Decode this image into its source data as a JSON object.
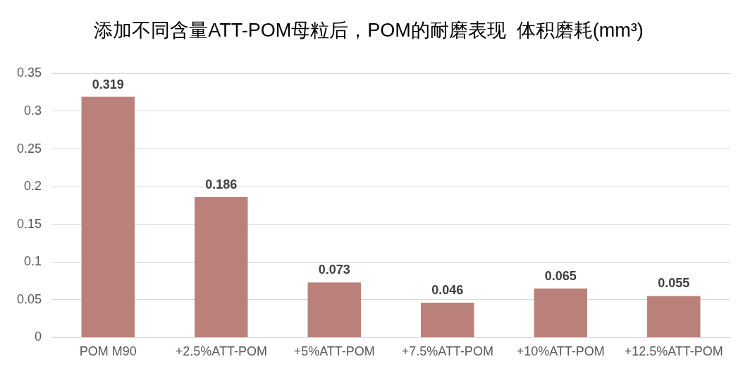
{
  "chart_data": {
    "type": "bar",
    "title": "添加不同含量ATT-POM母粒后，POM的耐磨表现  体积磨耗(mm³)",
    "categories": [
      "POM M90",
      "+2.5%ATT-POM",
      "+5%ATT-POM",
      "+7.5%ATT-POM",
      "+10%ATT-POM",
      "+12.5%ATT-POM"
    ],
    "values": [
      0.319,
      0.186,
      0.073,
      0.046,
      0.065,
      0.055
    ],
    "color": "#b9817a",
    "ylim": [
      0,
      0.35
    ],
    "yticks": [
      0,
      0.05,
      0.1,
      0.15,
      0.2,
      0.25,
      0.3,
      0.35
    ],
    "grid": "y",
    "data_labels": true,
    "legend": false
  }
}
